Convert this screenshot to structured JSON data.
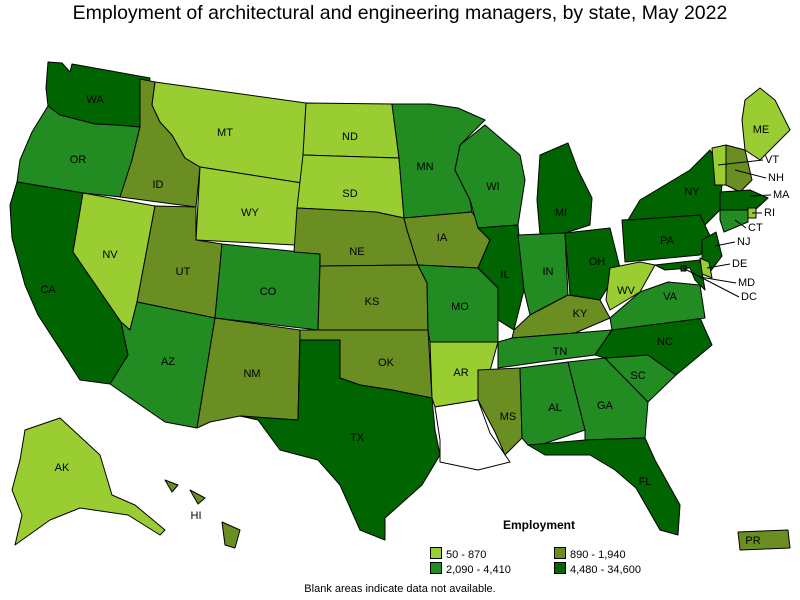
{
  "title": "Employment of architectural and engineering managers, by state, May 2022",
  "legend": {
    "title": "Employment",
    "items": [
      {
        "label": "50 - 870",
        "color": "#9acd32"
      },
      {
        "label": "890 - 1,940",
        "color": "#6b8e23"
      },
      {
        "label": "2,090 - 4,410",
        "color": "#228b22"
      },
      {
        "label": "4,480 - 34,600",
        "color": "#006400"
      }
    ]
  },
  "note": "Blank areas indicate data not available.",
  "states": {
    "WA": "4,480 - 34,600",
    "OR": "2,090 - 4,410",
    "CA": "4,480 - 34,600",
    "NV": "50 - 870",
    "ID": "890 - 1,940",
    "MT": "50 - 870",
    "WY": "50 - 870",
    "UT": "890 - 1,940",
    "AZ": "2,090 - 4,410",
    "CO": "2,090 - 4,410",
    "NM": "890 - 1,940",
    "ND": "50 - 870",
    "SD": "50 - 870",
    "NE": "890 - 1,940",
    "KS": "890 - 1,940",
    "OK": "890 - 1,940",
    "TX": "4,480 - 34,600",
    "MN": "2,090 - 4,410",
    "IA": "890 - 1,940",
    "MO": "2,090 - 4,410",
    "AR": "50 - 870",
    "LA": "",
    "WI": "2,090 - 4,410",
    "IL": "4,480 - 34,600",
    "MI": "4,480 - 34,600",
    "IN": "2,090 - 4,410",
    "OH": "4,480 - 34,600",
    "KY": "890 - 1,940",
    "TN": "2,090 - 4,410",
    "MS": "890 - 1,940",
    "AL": "2,090 - 4,410",
    "GA": "2,090 - 4,410",
    "FL": "4,480 - 34,600",
    "SC": "2,090 - 4,410",
    "NC": "4,480 - 34,600",
    "VA": "2,090 - 4,410",
    "WV": "50 - 870",
    "PA": "4,480 - 34,600",
    "NY": "4,480 - 34,600",
    "ME": "50 - 870",
    "VT": "50 - 870",
    "NH": "890 - 1,940",
    "MA": "4,480 - 34,600",
    "RI": "50 - 870",
    "CT": "2,090 - 4,410",
    "NJ": "4,480 - 34,600",
    "DE": "50 - 870",
    "MD": "4,480 - 34,600",
    "DC": "4,480 - 34,600",
    "AK": "50 - 870",
    "HI": "890 - 1,940",
    "PR": "890 - 1,940"
  }
}
